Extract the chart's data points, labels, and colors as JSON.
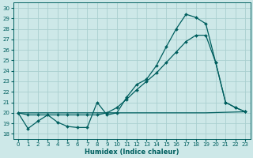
{
  "xlabel": "Humidex (Indice chaleur)",
  "bg_color": "#cde8e8",
  "grid_color": "#aacfcf",
  "line_color": "#005f5f",
  "xlim": [
    -0.5,
    23.5
  ],
  "ylim": [
    17.5,
    30.5
  ],
  "yticks": [
    18,
    19,
    20,
    21,
    22,
    23,
    24,
    25,
    26,
    27,
    28,
    29,
    30
  ],
  "xticks": [
    0,
    1,
    2,
    3,
    4,
    5,
    6,
    7,
    8,
    9,
    10,
    11,
    12,
    13,
    14,
    15,
    16,
    17,
    18,
    19,
    20,
    21,
    22,
    23
  ],
  "line1_x": [
    0,
    1,
    2,
    3,
    4,
    5,
    6,
    7,
    8,
    9,
    10,
    11,
    12,
    13,
    14,
    15,
    16,
    17,
    18,
    19,
    20,
    21,
    22,
    23
  ],
  "line1_y": [
    20.0,
    18.5,
    19.2,
    19.8,
    19.1,
    18.7,
    18.6,
    18.6,
    21.0,
    19.8,
    20.0,
    21.5,
    22.7,
    23.2,
    24.5,
    26.3,
    28.0,
    29.4,
    29.1,
    28.5,
    24.8,
    21.0,
    20.5,
    20.1
  ],
  "line2_x": [
    0,
    1,
    2,
    3,
    4,
    5,
    6,
    7,
    8,
    9,
    10,
    11,
    12,
    13,
    14,
    15,
    16,
    17,
    18,
    19,
    20,
    21,
    22,
    23
  ],
  "line2_y": [
    20.0,
    19.8,
    19.8,
    19.8,
    19.8,
    19.8,
    19.8,
    19.8,
    19.8,
    20.0,
    20.5,
    21.3,
    22.2,
    23.0,
    23.8,
    24.8,
    25.8,
    26.8,
    27.4,
    27.4,
    24.8,
    21.0,
    20.5,
    20.1
  ],
  "line3_x": [
    0,
    9,
    19,
    23
  ],
  "line3_y": [
    20.0,
    20.0,
    20.0,
    20.1
  ]
}
